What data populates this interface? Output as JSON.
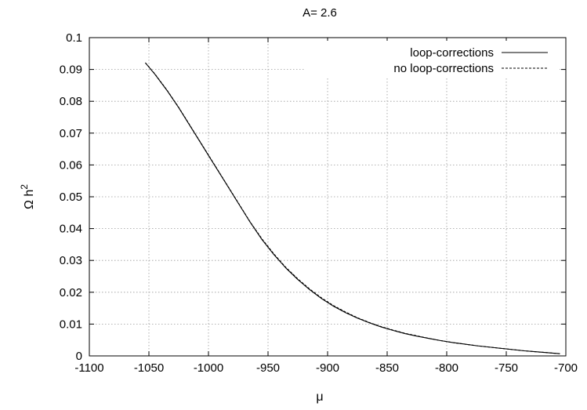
{
  "chart_data": {
    "type": "line",
    "title": "A= 2.6",
    "xlabel": "μ",
    "ylabel_main": "Ω h",
    "ylabel_sup": "2",
    "xlim": [
      -1100,
      -700
    ],
    "ylim": [
      0,
      0.1
    ],
    "xticks": [
      -1100,
      -1050,
      -1000,
      -950,
      -900,
      -850,
      -800,
      -750,
      -700
    ],
    "xtick_labels": [
      "-1100",
      "-1050",
      "-1000",
      "-950",
      "-900",
      "-850",
      "-800",
      "-750",
      "-700"
    ],
    "yticks": [
      0,
      0.01,
      0.02,
      0.03,
      0.04,
      0.05,
      0.06,
      0.07,
      0.08,
      0.09,
      0.1
    ],
    "ytick_labels": [
      "0",
      "0.01",
      "0.02",
      "0.03",
      "0.04",
      "0.05",
      "0.06",
      "0.07",
      "0.08",
      "0.09",
      "0.1"
    ],
    "grid": true,
    "legend_position": "top-right",
    "series": [
      {
        "name": "loop-corrections",
        "style": "solid",
        "color": "#000000",
        "x": [
          -1053,
          -1045,
          -1035,
          -1025,
          -1015,
          -1005,
          -995,
          -985,
          -975,
          -965,
          -955,
          -945,
          -935,
          -925,
          -915,
          -905,
          -895,
          -885,
          -875,
          -865,
          -855,
          -845,
          -835,
          -825,
          -815,
          -805,
          -795,
          -785,
          -775,
          -765,
          -755,
          -745,
          -735,
          -725,
          -715,
          -705
        ],
        "y": [
          0.0921,
          0.0885,
          0.0835,
          0.078,
          0.072,
          0.066,
          0.06,
          0.054,
          0.048,
          0.042,
          0.0365,
          0.0318,
          0.0276,
          0.024,
          0.0208,
          0.018,
          0.0156,
          0.0136,
          0.0119,
          0.0104,
          0.0091,
          0.008,
          0.007,
          0.0062,
          0.0055,
          0.0048,
          0.0042,
          0.0037,
          0.0032,
          0.0028,
          0.0024,
          0.002,
          0.0016,
          0.0013,
          0.001,
          0.0007
        ]
      },
      {
        "name": "no loop-corrections",
        "style": "dashed",
        "color": "#000000",
        "x": [
          -1053,
          -1045,
          -1035,
          -1025,
          -1015,
          -1005,
          -995,
          -985,
          -975,
          -965,
          -955,
          -945,
          -935,
          -925,
          -915,
          -905,
          -895,
          -885,
          -875,
          -865,
          -855,
          -845,
          -835,
          -825,
          -815,
          -805,
          -795,
          -785,
          -775,
          -765,
          -755,
          -745,
          -735,
          -725,
          -715,
          -705
        ],
        "y": [
          0.0921,
          0.0886,
          0.0836,
          0.0781,
          0.0721,
          0.0661,
          0.0601,
          0.0541,
          0.0481,
          0.0421,
          0.0367,
          0.032,
          0.0278,
          0.0242,
          0.021,
          0.0182,
          0.0158,
          0.0138,
          0.012,
          0.0105,
          0.0092,
          0.0081,
          0.0071,
          0.0063,
          0.0055,
          0.0048,
          0.0042,
          0.0037,
          0.0032,
          0.0028,
          0.0024,
          0.002,
          0.0016,
          0.0013,
          0.001,
          0.0007
        ]
      }
    ]
  }
}
